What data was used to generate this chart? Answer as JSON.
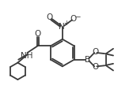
{
  "bg_color": "#ffffff",
  "line_color": "#3a3a3a",
  "lw": 1.3,
  "figsize": [
    1.68,
    1.41
  ],
  "dpi": 100,
  "xlim": [
    -3.5,
    5.5
  ],
  "ylim": [
    -4.5,
    3.5
  ]
}
